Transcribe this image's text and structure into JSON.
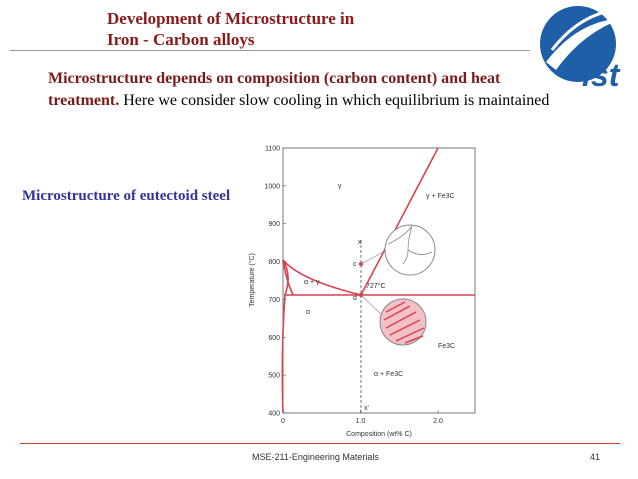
{
  "header": {
    "title_lines": [
      "Development of Microstructure in",
      "Iron - Carbon alloys"
    ],
    "logo": "ist"
  },
  "intro": {
    "bold": "Microstructure depends on composition (carbon content) and heat treatment.",
    "text": " Here we consider slow cooling in which equilibrium is maintained"
  },
  "side_label": "Microstructure of eutectoid steel",
  "figure": {
    "y_label": "Temperature (°C)",
    "yticks": [
      400,
      500,
      600,
      700,
      800,
      900,
      1000,
      1100
    ],
    "x_label": "Composition (wt% C)",
    "xticks": [
      "0",
      "1.0",
      "2.0"
    ],
    "regions": {
      "gamma": "γ",
      "gamma_fe3c": "γ + Fe3C",
      "alpha_gamma": "α + γ",
      "alpha": "α",
      "alpha_fe3c": "α + Fe3C",
      "eutectoid": "727°C",
      "fe3c": "Fe3C"
    },
    "points": {
      "x": "x",
      "x_prime": "x'",
      "c": "c",
      "d": "d"
    }
  },
  "footer": {
    "course": "MSE-211-Engineering Materials",
    "page": "41"
  }
}
